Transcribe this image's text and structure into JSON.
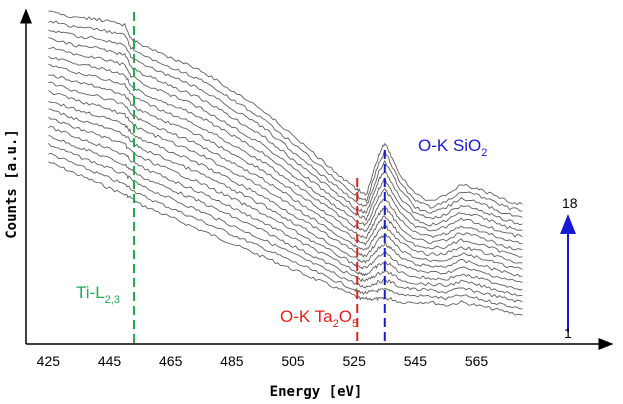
{
  "chart_data": {
    "type": "line",
    "xlabel": "Energy [eV]",
    "ylabel": "Counts [a.u.]",
    "x_ticks": [
      425,
      445,
      465,
      485,
      505,
      525,
      545,
      565
    ],
    "xlim": [
      419,
      590
    ],
    "series_count": 18,
    "series_start_label": "1",
    "series_end_label": "18",
    "series_color": "#5f5f5f",
    "x": [
      425,
      430,
      435,
      440,
      445,
      450,
      452,
      455,
      460,
      465,
      470,
      475,
      480,
      485,
      490,
      495,
      500,
      505,
      510,
      515,
      520,
      525,
      527,
      529,
      531,
      533,
      535,
      537,
      540,
      545,
      550,
      555,
      560,
      565,
      570,
      575,
      580
    ],
    "profile_bottom": [
      0.54,
      0.52,
      0.5,
      0.48,
      0.46,
      0.44,
      0.43,
      0.41,
      0.39,
      0.37,
      0.35,
      0.33,
      0.31,
      0.29,
      0.27,
      0.25,
      0.23,
      0.21,
      0.19,
      0.17,
      0.15,
      0.13,
      0.12,
      0.12,
      0.12,
      0.12,
      0.12,
      0.12,
      0.11,
      0.11,
      0.11,
      0.1,
      0.11,
      0.1,
      0.09,
      0.08,
      0.07
    ],
    "profile_top": [
      1.0,
      0.99,
      0.98,
      0.98,
      0.97,
      0.96,
      0.92,
      0.9,
      0.88,
      0.86,
      0.84,
      0.82,
      0.79,
      0.76,
      0.73,
      0.7,
      0.66,
      0.62,
      0.58,
      0.54,
      0.5,
      0.46,
      0.45,
      0.44,
      0.5,
      0.56,
      0.6,
      0.56,
      0.5,
      0.44,
      0.42,
      0.44,
      0.47,
      0.46,
      0.44,
      0.42,
      0.41
    ],
    "annotations": [
      {
        "label": "Ti-L",
        "sub": "2,3",
        "x": 453,
        "color": "#22aa55"
      },
      {
        "label": "O-K Ta",
        "sub": "2",
        "label2": "O",
        "sub2": "5",
        "x": 526,
        "color": "#e02020"
      },
      {
        "label": "O-K SiO",
        "sub": "2",
        "x": 535,
        "color": "#1a1ad6"
      }
    ],
    "legend": "none",
    "grid": false
  }
}
